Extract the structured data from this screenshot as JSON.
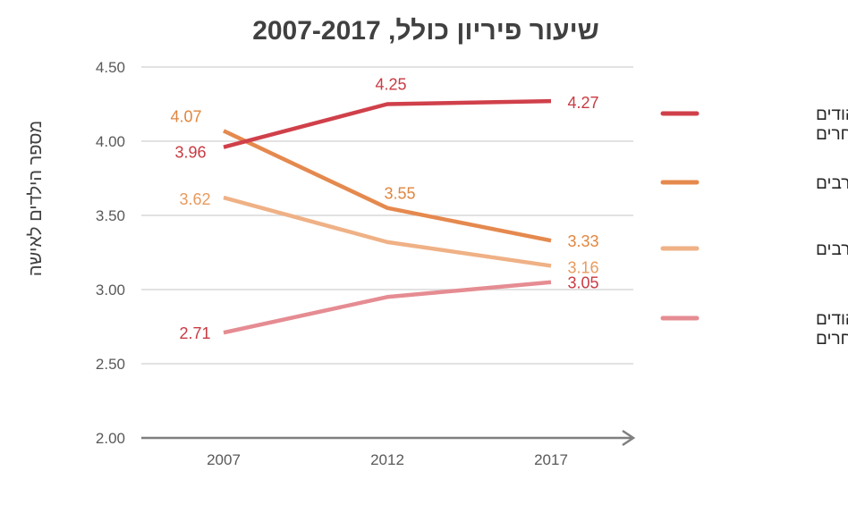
{
  "chart_data": {
    "type": "line",
    "title": "שיעור פיריון כולל, 2007-2017",
    "ylabel": "מספר הילדים לאישה",
    "xlabel": "",
    "categories": [
      "2007",
      "2012",
      "2017"
    ],
    "ylim": [
      2.0,
      4.5
    ],
    "yticks": [
      "2.00",
      "2.50",
      "3.00",
      "3.50",
      "4.00",
      "4.50"
    ],
    "grid": true,
    "legend_position": "right",
    "series": [
      {
        "name": "ירושלים - יהודים ואחרים",
        "name_lines": [
          "ירושלים - יהודים",
          "ואחרים"
        ],
        "color": "#d0404a",
        "label_color": "#c93a42",
        "values": [
          3.96,
          4.25,
          4.27
        ],
        "labels": [
          "3.96",
          "4.25",
          "4.27"
        ]
      },
      {
        "name": "ירושלים - ערבים",
        "name_lines": [
          "ירושלים - ערבים"
        ],
        "color": "#e5894e",
        "label_color": "#e0863f",
        "values": [
          4.07,
          3.55,
          3.33
        ],
        "labels": [
          "4.07",
          "3.55",
          "3.33"
        ]
      },
      {
        "name": "ישראל - ערבים",
        "name_lines": [
          "ישראל - ערבים"
        ],
        "color": "#efb185",
        "label_color": "#e89a5e",
        "values": [
          3.62,
          3.32,
          3.16
        ],
        "labels": [
          "3.62",
          "",
          "3.16"
        ]
      },
      {
        "name": "ישראל - יהודים ואחרים",
        "name_lines": [
          "ישראל - יהודים",
          "ואחרים"
        ],
        "color": "#e58c92",
        "label_color": "#c93a42",
        "values": [
          2.71,
          2.95,
          3.05
        ],
        "labels": [
          "2.71",
          "",
          "3.05"
        ]
      }
    ]
  }
}
